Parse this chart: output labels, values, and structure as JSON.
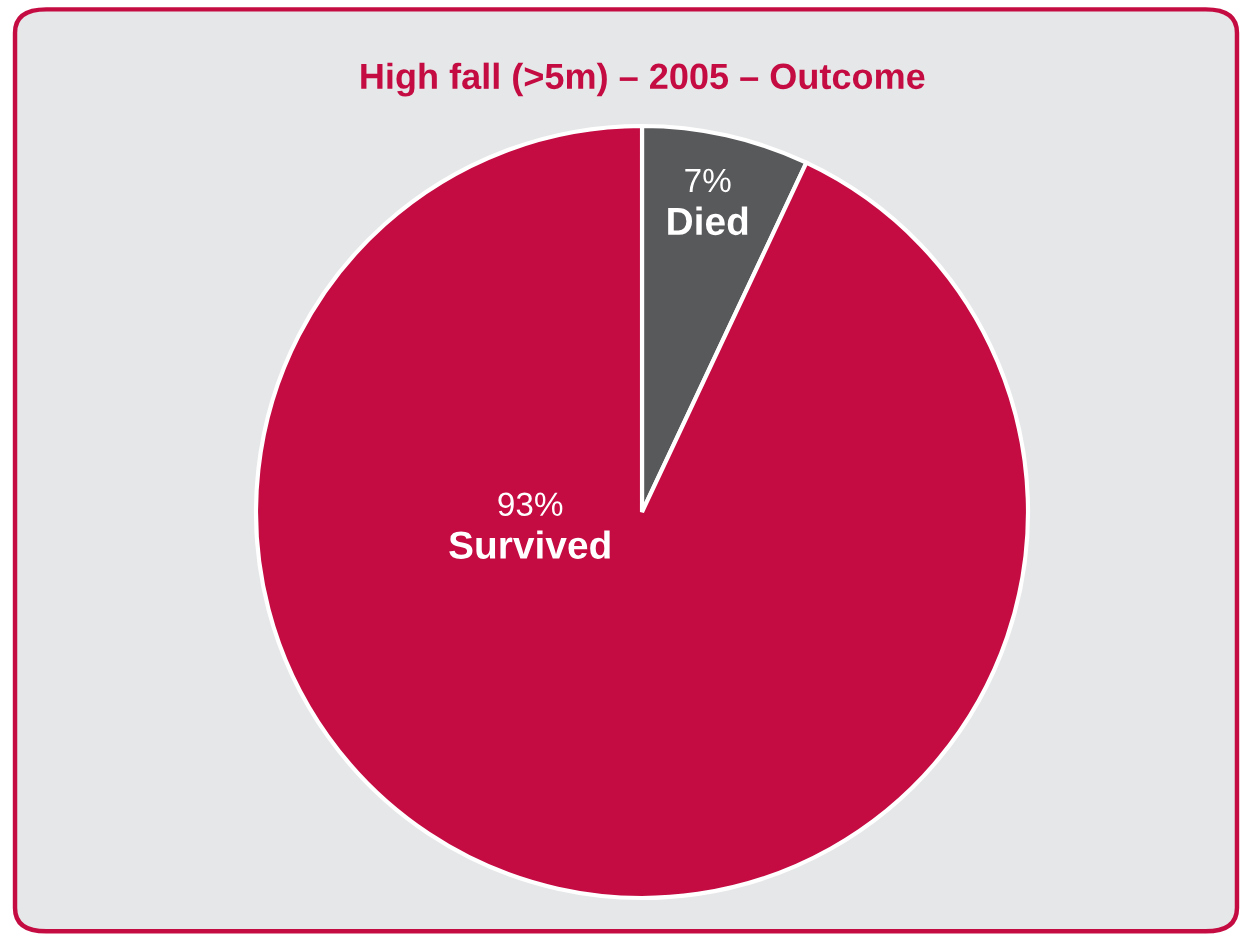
{
  "chart_data": {
    "type": "pie",
    "title": "High fall (>5m) – 2005 – Outcome",
    "categories": [
      "Died",
      "Survived"
    ],
    "values": [
      7,
      93
    ],
    "colors": [
      "#58595b",
      "#c40c42"
    ],
    "value_labels": [
      "7%",
      "93%"
    ]
  }
}
